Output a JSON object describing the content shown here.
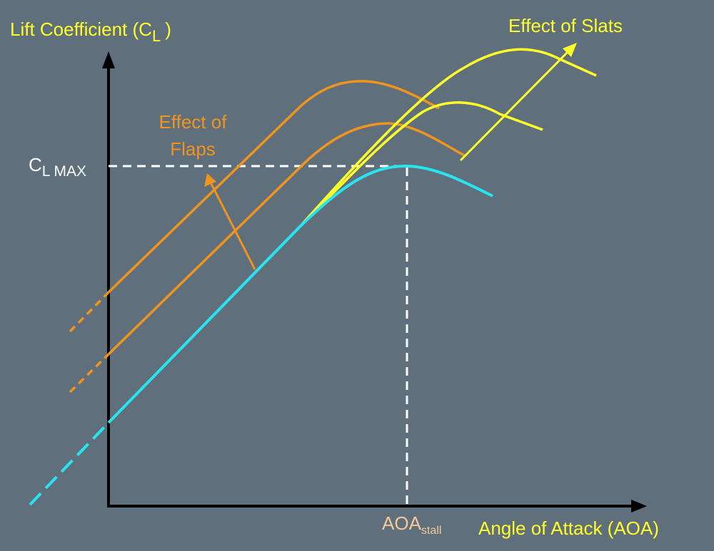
{
  "y_axis_label": {
    "text": "Lift Coefficient (C",
    "subscript": "L",
    "suffix": ")"
  },
  "cl_max": {
    "text": "C",
    "subscript": "L MAX"
  },
  "aoa_stall": {
    "text": "AOA",
    "subscript": "stall"
  },
  "x_axis_label": "Angle of Attack (AOA)",
  "flaps_label": [
    "Effect of",
    "Flaps"
  ],
  "slats_label": "Effect of Slats"
}
